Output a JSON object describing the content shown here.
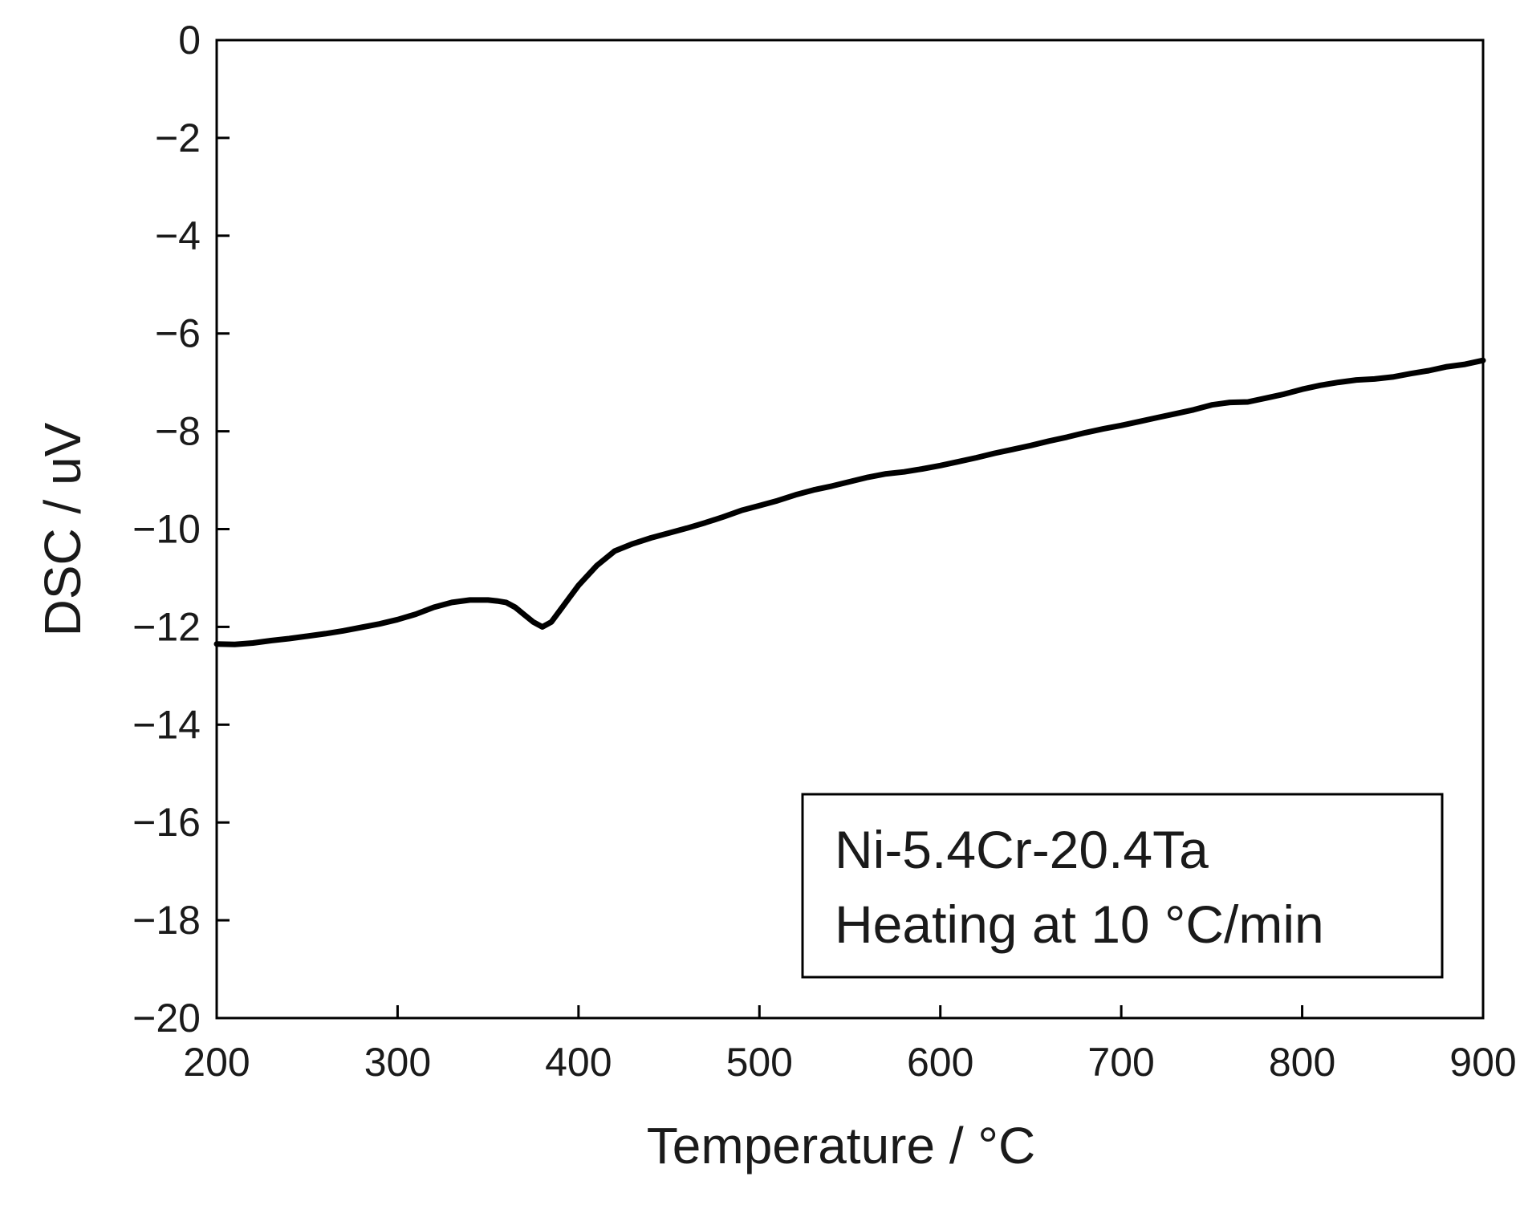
{
  "chart_data": {
    "type": "line",
    "title": "",
    "xlabel": "Temperature / °C",
    "ylabel": "DSC / uV",
    "xlim": [
      200,
      900
    ],
    "ylim": [
      -20,
      0
    ],
    "x_ticks": [
      200,
      300,
      400,
      500,
      600,
      700,
      800,
      900
    ],
    "y_ticks": [
      0,
      -2,
      -4,
      -6,
      -8,
      -10,
      -12,
      -14,
      -16,
      -18,
      -20
    ],
    "x_tick_labels": [
      "200",
      "300",
      "400",
      "500",
      "600",
      "700",
      "800",
      "900"
    ],
    "y_tick_labels": [
      "0",
      "−2",
      "−4",
      "−6",
      "−8",
      "−10",
      "−12",
      "−14",
      "−16",
      "−18",
      "−20"
    ],
    "grid": false,
    "legend": "none",
    "annotation": {
      "lines": [
        "Ni-5.4Cr-20.4Ta",
        "Heating at 10 °C/min"
      ],
      "placement": "bottom-right"
    },
    "series": [
      {
        "color": "#000000",
        "x": [
          200,
          210,
          220,
          230,
          240,
          250,
          260,
          270,
          280,
          290,
          300,
          310,
          320,
          330,
          340,
          350,
          355,
          360,
          365,
          370,
          375,
          380,
          385,
          390,
          395,
          400,
          410,
          420,
          430,
          440,
          450,
          460,
          470,
          480,
          490,
          500,
          510,
          520,
          530,
          540,
          550,
          560,
          570,
          580,
          590,
          600,
          610,
          620,
          630,
          640,
          650,
          660,
          670,
          680,
          690,
          700,
          710,
          720,
          730,
          740,
          750,
          760,
          770,
          780,
          790,
          800,
          810,
          820,
          830,
          840,
          850,
          860,
          870,
          880,
          890,
          900
        ],
        "y": [
          -12.35,
          -12.36,
          -12.33,
          -12.28,
          -12.24,
          -12.19,
          -12.14,
          -12.08,
          -12.01,
          -11.94,
          -11.85,
          -11.74,
          -11.6,
          -11.5,
          -11.45,
          -11.45,
          -11.47,
          -11.5,
          -11.6,
          -11.75,
          -11.9,
          -12.0,
          -11.9,
          -11.65,
          -11.4,
          -11.15,
          -10.75,
          -10.45,
          -10.3,
          -10.18,
          -10.08,
          -9.98,
          -9.87,
          -9.75,
          -9.62,
          -9.52,
          -9.42,
          -9.3,
          -9.2,
          -9.12,
          -9.03,
          -8.94,
          -8.87,
          -8.83,
          -8.77,
          -8.7,
          -8.62,
          -8.54,
          -8.45,
          -8.37,
          -8.29,
          -8.2,
          -8.12,
          -8.03,
          -7.95,
          -7.88,
          -7.8,
          -7.72,
          -7.64,
          -7.56,
          -7.46,
          -7.41,
          -7.4,
          -7.32,
          -7.24,
          -7.14,
          -7.06,
          -7.0,
          -6.95,
          -6.93,
          -6.89,
          -6.82,
          -6.76,
          -6.68,
          -6.63,
          -6.55
        ]
      }
    ]
  }
}
